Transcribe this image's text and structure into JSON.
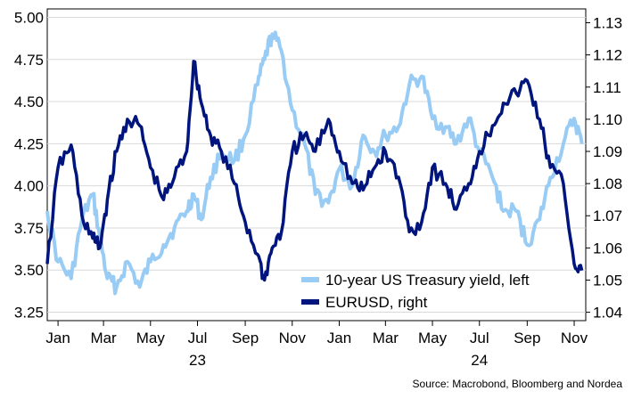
{
  "chart_data": {
    "type": "line",
    "title": "",
    "x_tick_labels": [
      "Jan",
      "Mar",
      "May",
      "Jul",
      "Sep",
      "Nov",
      "Jan",
      "Mar",
      "May",
      "Jul",
      "Sep",
      "Nov"
    ],
    "x_year_labels": [
      {
        "label": "23",
        "month": "2023-07"
      },
      {
        "label": "24",
        "month": "2024-07"
      }
    ],
    "x_range": [
      "2023-01-01",
      "2024-11-30"
    ],
    "y_left": {
      "ticks": [
        "3.25",
        "3.50",
        "3.75",
        "4.00",
        "4.25",
        "4.50",
        "4.75",
        "5.00"
      ],
      "range": [
        3.2,
        5.05
      ]
    },
    "y_right": {
      "ticks": [
        "1.04",
        "1.05",
        "1.06",
        "1.07",
        "1.08",
        "1.09",
        "1.10",
        "1.11",
        "1.12",
        "1.13"
      ],
      "range": [
        1.0374,
        1.1343
      ]
    },
    "legend_position": "bottom-right",
    "series": [
      {
        "name": "10-year US Treasury yield, left",
        "axis": "left",
        "color": "#99ccf5",
        "x": [
          "2023-01-01",
          "2023-01-15",
          "2023-02-01",
          "2023-02-15",
          "2023-03-01",
          "2023-03-10",
          "2023-03-20",
          "2023-04-01",
          "2023-04-15",
          "2023-05-01",
          "2023-05-15",
          "2023-06-01",
          "2023-06-15",
          "2023-07-01",
          "2023-07-10",
          "2023-07-20",
          "2023-08-01",
          "2023-08-15",
          "2023-09-01",
          "2023-09-15",
          "2023-10-01",
          "2023-10-10",
          "2023-10-20",
          "2023-11-01",
          "2023-11-15",
          "2023-12-01",
          "2023-12-15",
          "2024-01-01",
          "2024-01-15",
          "2024-02-01",
          "2024-02-15",
          "2024-03-01",
          "2024-03-15",
          "2024-04-01",
          "2024-04-15",
          "2024-05-01",
          "2024-05-15",
          "2024-06-01",
          "2024-06-15",
          "2024-07-01",
          "2024-07-15",
          "2024-08-01",
          "2024-08-15",
          "2024-09-01",
          "2024-09-15",
          "2024-10-01",
          "2024-10-15",
          "2024-11-01",
          "2024-11-15",
          "2024-11-25"
        ],
        "values": [
          3.85,
          3.55,
          3.45,
          3.8,
          3.95,
          3.7,
          3.45,
          3.4,
          3.55,
          3.4,
          3.55,
          3.65,
          3.75,
          3.85,
          3.95,
          3.8,
          4.05,
          4.2,
          4.15,
          4.3,
          4.6,
          4.75,
          4.9,
          4.8,
          4.45,
          4.25,
          3.95,
          3.9,
          4.1,
          4.0,
          4.3,
          4.2,
          4.3,
          4.35,
          4.6,
          4.65,
          4.4,
          4.35,
          4.25,
          4.4,
          4.2,
          4.05,
          3.85,
          3.85,
          3.65,
          3.8,
          4.05,
          4.25,
          4.4,
          4.25
        ]
      },
      {
        "name": "EURUSD, right",
        "axis": "right",
        "color": "#00147d",
        "x": [
          "2023-01-01",
          "2023-01-15",
          "2023-02-01",
          "2023-02-15",
          "2023-03-01",
          "2023-03-10",
          "2023-03-20",
          "2023-04-01",
          "2023-04-15",
          "2023-05-01",
          "2023-05-15",
          "2023-06-01",
          "2023-06-15",
          "2023-07-01",
          "2023-07-10",
          "2023-07-20",
          "2023-08-01",
          "2023-08-15",
          "2023-09-01",
          "2023-09-15",
          "2023-10-01",
          "2023-10-10",
          "2023-10-20",
          "2023-11-01",
          "2023-11-15",
          "2023-12-01",
          "2023-12-15",
          "2024-01-01",
          "2024-01-15",
          "2024-02-01",
          "2024-02-15",
          "2024-03-01",
          "2024-03-15",
          "2024-04-01",
          "2024-04-15",
          "2024-05-01",
          "2024-05-15",
          "2024-06-01",
          "2024-06-15",
          "2024-07-01",
          "2024-07-15",
          "2024-08-01",
          "2024-08-15",
          "2024-09-01",
          "2024-09-15",
          "2024-10-01",
          "2024-10-15",
          "2024-11-01",
          "2024-11-15",
          "2024-11-25"
        ],
        "values": [
          1.055,
          1.085,
          1.092,
          1.07,
          1.063,
          1.06,
          1.075,
          1.09,
          1.1,
          1.098,
          1.085,
          1.075,
          1.082,
          1.09,
          1.118,
          1.105,
          1.095,
          1.09,
          1.08,
          1.068,
          1.058,
          1.05,
          1.06,
          1.065,
          1.09,
          1.095,
          1.09,
          1.1,
          1.09,
          1.08,
          1.078,
          1.085,
          1.09,
          1.082,
          1.065,
          1.068,
          1.085,
          1.08,
          1.072,
          1.08,
          1.09,
          1.098,
          1.105,
          1.108,
          1.112,
          1.1,
          1.085,
          1.08,
          1.055,
          1.053
        ]
      }
    ],
    "source": "Source: Macrobond, Bloomberg and Nordea"
  }
}
